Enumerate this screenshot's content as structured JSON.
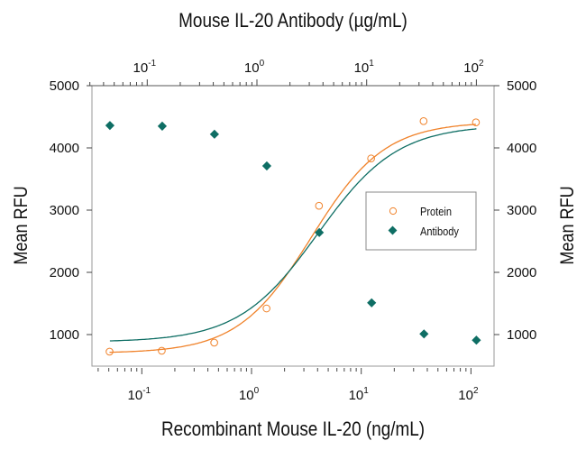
{
  "chart_data": {
    "type": "scatter",
    "top_xlabel": "Mouse IL-20 Antibody (µg/mL)",
    "xlabel": "Recombinant Mouse IL-20 (ng/mL)",
    "ylabel": "Mean RFU",
    "ylabel_right": "Mean RFU",
    "x_scale": "log",
    "x_ticks": [
      {
        "base": "10",
        "exp": "-1",
        "value": 0.1
      },
      {
        "base": "10",
        "exp": "0",
        "value": 1
      },
      {
        "base": "10",
        "exp": "1",
        "value": 10
      },
      {
        "base": "10",
        "exp": "2",
        "value": 100
      }
    ],
    "top_x_ticks": [
      {
        "base": "10",
        "exp": "-1",
        "value": 0.1
      },
      {
        "base": "10",
        "exp": "0",
        "value": 1
      },
      {
        "base": "10",
        "exp": "1",
        "value": 10
      },
      {
        "base": "10",
        "exp": "2",
        "value": 100
      }
    ],
    "y_ticks": [
      "1000",
      "2000",
      "3000",
      "4000",
      "5000"
    ],
    "ylim": [
      480,
      5000
    ],
    "grid": false,
    "legend_position": "right",
    "series": [
      {
        "name": "Protein",
        "axis": "bottom",
        "marker": "open-circle",
        "color": "#f0822a",
        "x": [
          0.0508,
          0.152,
          0.457,
          1.37,
          4.12,
          12.3,
          37.0,
          111
        ],
        "y": [
          725,
          740,
          870,
          1420,
          3070,
          3830,
          4430,
          4410
        ],
        "fit": {
          "bottom": 700,
          "top": 4420,
          "ec50": 3.5,
          "hill": 1.3
        }
      },
      {
        "name": "Antibody",
        "axis": "top",
        "marker": "filled-diamond",
        "color": "#0e6e64",
        "x": [
          0.0457,
          0.137,
          0.41,
          1.23,
          3.7,
          11.1,
          33.3,
          100
        ],
        "y": [
          4360,
          4350,
          4220,
          3710,
          2640,
          1510,
          1010,
          910
        ],
        "fit": {
          "bottom": 880,
          "top": 4370,
          "ec50": 3.6,
          "hill": 1.2
        }
      }
    ]
  }
}
